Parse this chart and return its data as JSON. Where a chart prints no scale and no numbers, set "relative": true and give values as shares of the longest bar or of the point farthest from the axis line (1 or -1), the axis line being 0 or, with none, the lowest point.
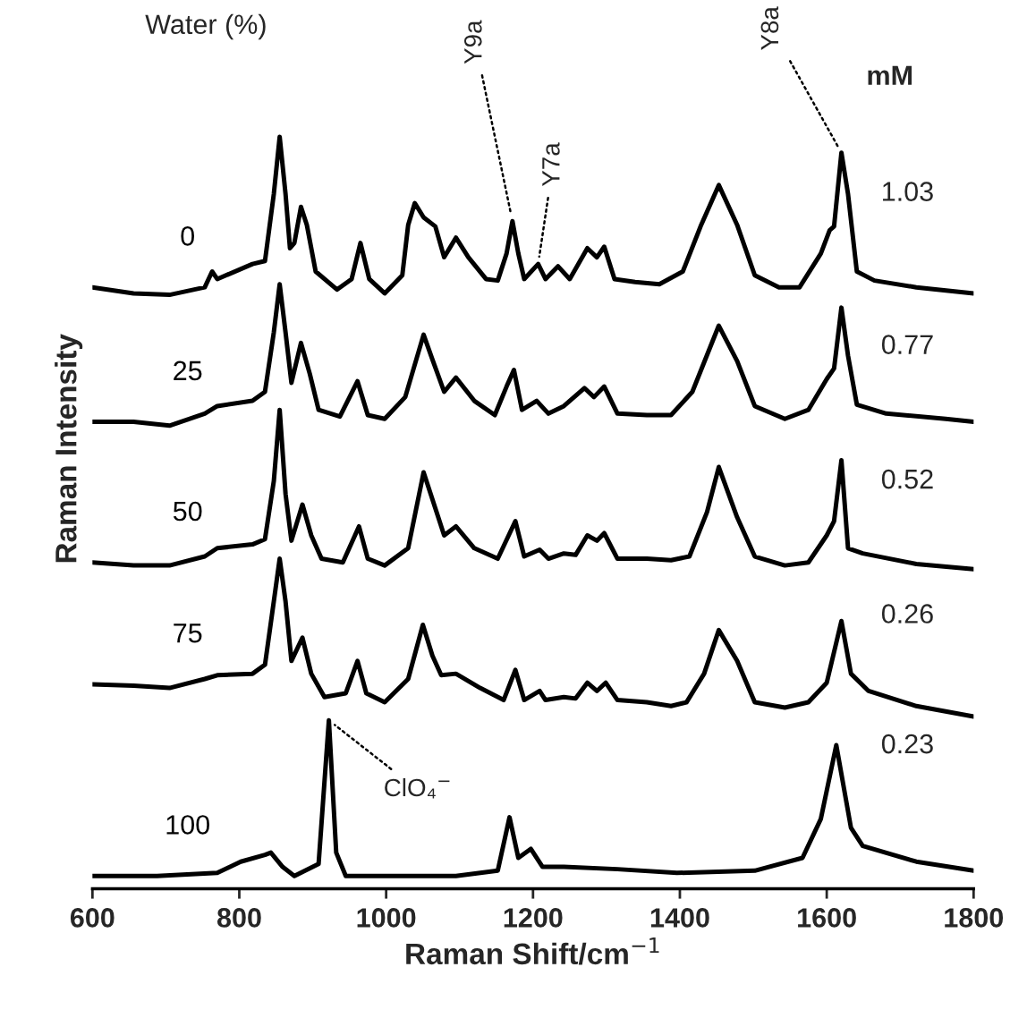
{
  "chart_data": {
    "type": "line",
    "relative": true,
    "xlabel": "Raman Shift/cm$^{−1}$",
    "ylabel": "Raman Intensity",
    "xlim": [
      600,
      1800
    ],
    "xticks": [
      600,
      800,
      1000,
      1200,
      1400,
      1600,
      1800
    ],
    "annotations": [
      "Water (%)",
      "mM",
      "1.03",
      "0.77",
      "0.52",
      "0.26",
      "0.23",
      {
        "text": "Y9a",
        "x": 1172,
        "y": 0.888
      },
      {
        "text": "Y7a",
        "x": 1207,
        "y": 0.831
      },
      {
        "text": "Y8a",
        "x": 1620,
        "y": 0.979
      },
      {
        "text": "ClO₄$^{−}$",
        "x": 922,
        "y": 0.224
      }
    ],
    "series": [
      {
        "name": "0",
        "color": "#000000",
        "x": [
          600,
          656,
          705,
          753,
          763,
          770,
          818,
          835,
          847,
          855,
          863,
          869,
          875,
          884,
          892,
          904,
          933,
          953,
          965,
          977,
          998,
          1022,
          1030,
          1039,
          1051,
          1067,
          1079,
          1095,
          1112,
          1136,
          1152,
          1164,
          1172,
          1180,
          1188,
          1207,
          1217,
          1234,
          1250,
          1274,
          1287,
          1297,
          1311,
          1339,
          1372,
          1404,
          1429,
          1453,
          1478,
          1502,
          1535,
          1563,
          1592,
          1604,
          1610,
          1620,
          1629,
          1641,
          1665,
          1722,
          1800
        ],
        "values": [
          0.8,
          0.792,
          0.79,
          0.8,
          0.821,
          0.811,
          0.831,
          0.835,
          0.924,
          1.0,
          0.924,
          0.852,
          0.859,
          0.907,
          0.883,
          0.821,
          0.797,
          0.811,
          0.859,
          0.811,
          0.792,
          0.816,
          0.883,
          0.912,
          0.893,
          0.881,
          0.84,
          0.866,
          0.84,
          0.811,
          0.809,
          0.845,
          0.888,
          0.845,
          0.811,
          0.831,
          0.811,
          0.828,
          0.811,
          0.852,
          0.84,
          0.854,
          0.811,
          0.807,
          0.804,
          0.821,
          0.883,
          0.936,
          0.883,
          0.816,
          0.8,
          0.8,
          0.845,
          0.876,
          0.881,
          0.979,
          0.924,
          0.821,
          0.809,
          0.8,
          0.792
        ]
      },
      {
        "name": "25",
        "color": "#000000",
        "x": [
          600,
          656,
          705,
          753,
          770,
          818,
          835,
          847,
          855,
          863,
          871,
          884,
          896,
          908,
          937,
          961,
          975,
          998,
          1026,
          1051,
          1063,
          1079,
          1095,
          1120,
          1148,
          1164,
          1174,
          1185,
          1205,
          1221,
          1242,
          1270,
          1283,
          1297,
          1315,
          1355,
          1388,
          1417,
          1453,
          1478,
          1502,
          1543,
          1575,
          1600,
          1610,
          1620,
          1629,
          1641,
          1681,
          1762,
          1800
        ],
        "values": [
          0.621,
          0.621,
          0.616,
          0.632,
          0.642,
          0.649,
          0.661,
          0.74,
          0.804,
          0.74,
          0.673,
          0.726,
          0.685,
          0.637,
          0.628,
          0.675,
          0.63,
          0.625,
          0.654,
          0.737,
          0.704,
          0.661,
          0.68,
          0.649,
          0.63,
          0.668,
          0.69,
          0.637,
          0.649,
          0.632,
          0.642,
          0.666,
          0.654,
          0.668,
          0.632,
          0.63,
          0.63,
          0.661,
          0.749,
          0.702,
          0.642,
          0.625,
          0.637,
          0.678,
          0.692,
          0.773,
          0.709,
          0.644,
          0.632,
          0.625,
          0.621
        ]
      },
      {
        "name": "50",
        "color": "#000000",
        "x": [
          600,
          656,
          705,
          753,
          770,
          818,
          835,
          847,
          855,
          863,
          871,
          886,
          898,
          912,
          941,
          963,
          975,
          998,
          1030,
          1051,
          1067,
          1079,
          1095,
          1120,
          1152,
          1176,
          1188,
          1209,
          1221,
          1242,
          1258,
          1274,
          1287,
          1297,
          1315,
          1355,
          1388,
          1413,
          1437,
          1453,
          1478,
          1502,
          1543,
          1575,
          1600,
          1610,
          1620,
          1629,
          1649,
          1722,
          1800
        ],
        "values": [
          0.434,
          0.43,
          0.43,
          0.442,
          0.453,
          0.458,
          0.465,
          0.542,
          0.637,
          0.525,
          0.463,
          0.511,
          0.47,
          0.439,
          0.434,
          0.482,
          0.439,
          0.43,
          0.453,
          0.554,
          0.506,
          0.47,
          0.482,
          0.453,
          0.439,
          0.489,
          0.442,
          0.451,
          0.439,
          0.446,
          0.444,
          0.47,
          0.463,
          0.473,
          0.439,
          0.439,
          0.437,
          0.442,
          0.501,
          0.561,
          0.494,
          0.442,
          0.43,
          0.434,
          0.47,
          0.489,
          0.57,
          0.453,
          0.446,
          0.432,
          0.425
        ]
      },
      {
        "name": "75",
        "color": "#000000",
        "x": [
          600,
          656,
          705,
          753,
          770,
          818,
          835,
          847,
          855,
          863,
          871,
          886,
          898,
          916,
          945,
          961,
          973,
          998,
          1030,
          1050,
          1063,
          1075,
          1095,
          1128,
          1160,
          1176,
          1188,
          1209,
          1217,
          1242,
          1258,
          1274,
          1287,
          1299,
          1315,
          1355,
          1388,
          1409,
          1433,
          1453,
          1478,
          1502,
          1543,
          1575,
          1600,
          1620,
          1633,
          1657,
          1722,
          1800
        ],
        "values": [
          0.272,
          0.27,
          0.267,
          0.279,
          0.284,
          0.286,
          0.298,
          0.382,
          0.439,
          0.382,
          0.303,
          0.334,
          0.286,
          0.255,
          0.26,
          0.303,
          0.26,
          0.248,
          0.279,
          0.351,
          0.31,
          0.284,
          0.286,
          0.267,
          0.251,
          0.291,
          0.251,
          0.263,
          0.251,
          0.255,
          0.253,
          0.274,
          0.263,
          0.274,
          0.251,
          0.248,
          0.243,
          0.248,
          0.286,
          0.344,
          0.303,
          0.248,
          0.241,
          0.248,
          0.274,
          0.356,
          0.286,
          0.263,
          0.243,
          0.229
        ]
      },
      {
        "name": "100",
        "color": "#000000",
        "x": [
          600,
          688,
          770,
          802,
          835,
          843,
          859,
          875,
          908,
          922,
          932,
          945,
          1014,
          1095,
          1152,
          1168,
          1180,
          1197,
          1213,
          1242,
          1315,
          1396,
          1502,
          1567,
          1592,
          1613,
          1633,
          1649,
          1722,
          1800
        ],
        "values": [
          0.017,
          0.017,
          0.021,
          0.036,
          0.045,
          0.048,
          0.029,
          0.017,
          0.033,
          0.224,
          0.048,
          0.017,
          0.017,
          0.017,
          0.024,
          0.095,
          0.041,
          0.053,
          0.029,
          0.029,
          0.026,
          0.021,
          0.024,
          0.041,
          0.093,
          0.191,
          0.081,
          0.057,
          0.036,
          0.024
        ]
      }
    ]
  }
}
